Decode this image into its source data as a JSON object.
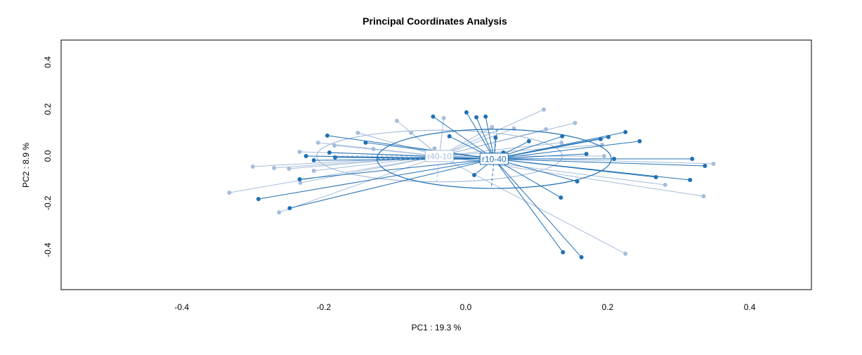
{
  "chart_data": {
    "type": "scatter",
    "title": "Principal Coordinates Analysis",
    "xlabel": "PC1 : 19.3 %",
    "ylabel": "PC2 : 8.9 %",
    "xlim": [
      -0.57,
      0.487
    ],
    "ylim": [
      -0.569,
      0.494
    ],
    "xticks": [
      -0.4,
      -0.2,
      0.0,
      0.2,
      0.4
    ],
    "xtick_labels": [
      "-0.4",
      "-0.2",
      "0.0",
      "0.2",
      "0.4"
    ],
    "yticks": [
      -0.4,
      -0.2,
      0.0,
      0.2,
      0.4
    ],
    "ytick_labels": [
      "-0.4",
      "-0.2",
      "0.0",
      "0.2",
      "0.4"
    ],
    "grid": false,
    "groups": [
      {
        "name": "r40-10",
        "color": "#a6bddb",
        "centroid": [
          -0.037,
          0.0
        ],
        "ellipse_axes": [
          0.173,
          0.11
        ],
        "points": [
          [
            -0.3,
            -0.045
          ],
          [
            -0.27,
            -0.051
          ],
          [
            -0.249,
            -0.054
          ],
          [
            -0.333,
            -0.156
          ],
          [
            -0.263,
            -0.24
          ],
          [
            -0.234,
            0.018
          ],
          [
            -0.208,
            0.057
          ],
          [
            -0.214,
            -0.063
          ],
          [
            -0.233,
            -0.114
          ],
          [
            -0.185,
            0.045
          ],
          [
            -0.152,
            0.099
          ],
          [
            -0.13,
            0.03
          ],
          [
            -0.097,
            0.15
          ],
          [
            -0.077,
            0.099
          ],
          [
            -0.031,
            0.162
          ],
          [
            -0.044,
            0.033
          ],
          [
            0.037,
            0.123
          ],
          [
            0.068,
            0.117
          ],
          [
            0.11,
            0.198
          ],
          [
            0.154,
            0.141
          ],
          [
            0.113,
            0.114
          ],
          [
            0.135,
            0.057
          ],
          [
            0.192,
            0.048
          ],
          [
            0.195,
            0.0
          ],
          [
            0.349,
            -0.033
          ],
          [
            0.281,
            -0.123
          ],
          [
            0.335,
            -0.171
          ],
          [
            0.225,
            -0.416
          ]
        ]
      },
      {
        "name": "r10-40",
        "color": "#2171b5",
        "centroid": [
          0.04,
          -0.012
        ],
        "ellipse_axes": [
          0.165,
          0.126
        ],
        "points": [
          [
            0.001,
            0.186
          ],
          [
            0.015,
            0.165
          ],
          [
            0.028,
            0.168
          ],
          [
            -0.046,
            0.168
          ],
          [
            -0.023,
            0.084
          ],
          [
            0.042,
            0.078
          ],
          [
            0.089,
            0.063
          ],
          [
            0.136,
            0.084
          ],
          [
            0.19,
            0.072
          ],
          [
            0.201,
            0.081
          ],
          [
            0.225,
            0.102
          ],
          [
            0.245,
            0.063
          ],
          [
            0.17,
            0.009
          ],
          [
            0.209,
            -0.012
          ],
          [
            0.319,
            -0.012
          ],
          [
            0.337,
            -0.042
          ],
          [
            0.268,
            -0.09
          ],
          [
            0.316,
            -0.102
          ],
          [
            0.157,
            -0.108
          ],
          [
            0.134,
            -0.177
          ],
          [
            0.137,
            -0.41
          ],
          [
            0.163,
            -0.431
          ],
          [
            0.012,
            -0.081
          ],
          [
            -0.195,
            0.087
          ],
          [
            -0.141,
            0.057
          ],
          [
            -0.225,
            0.0
          ],
          [
            -0.214,
            -0.018
          ],
          [
            -0.192,
            0.015
          ],
          [
            -0.184,
            -0.006
          ],
          [
            -0.234,
            -0.099
          ],
          [
            -0.292,
            -0.183
          ],
          [
            -0.248,
            -0.222
          ],
          [
            0.053,
            0.015
          ]
        ]
      }
    ]
  }
}
